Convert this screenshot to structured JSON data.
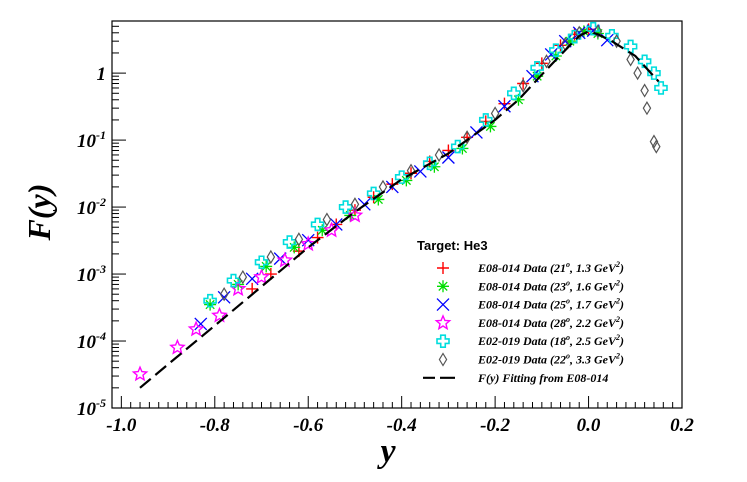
{
  "chart_data": {
    "type": "scatter",
    "title": "",
    "xlabel": "y",
    "ylabel": "F(y)",
    "xlim": [
      -1.02,
      0.2
    ],
    "ylim": [
      1e-05,
      6
    ],
    "yscale": "log",
    "grid": false,
    "x_tick_labels": [
      "-1.0",
      "-0.8",
      "-0.6",
      "-0.4",
      "-0.2",
      "0.0",
      "0.2"
    ],
    "x_tick_values": [
      -1.0,
      -0.8,
      -0.6,
      -0.4,
      -0.2,
      0.0,
      0.2
    ],
    "y_tick_labels": [
      {
        "base": "10",
        "exp": "-5",
        "value": 1e-05
      },
      {
        "base": "10",
        "exp": "-4",
        "value": 0.0001
      },
      {
        "base": "10",
        "exp": "-3",
        "value": 0.001
      },
      {
        "base": "10",
        "exp": "-2",
        "value": 0.01
      },
      {
        "base": "10",
        "exp": "-1",
        "value": 0.1
      },
      {
        "base": "1",
        "exp": "",
        "value": 1
      }
    ],
    "legend": {
      "title": "Target: He3",
      "placement": "bottom-right",
      "entries": [
        {
          "label": "E08-014 Data (21",
          "deg": "o",
          "mid": ", 1.3 GeV",
          "sup": "2",
          "end": ")",
          "marker": "plus",
          "color": "#ff0000"
        },
        {
          "label": "E08-014 Data (23",
          "deg": "o",
          "mid": ", 1.6 GeV",
          "sup": "2",
          "end": ")",
          "marker": "asterisk",
          "color": "#00dd00"
        },
        {
          "label": "E08-014 Data (25",
          "deg": "o",
          "mid": ", 1.7 GeV",
          "sup": "2",
          "end": ")",
          "marker": "cross",
          "color": "#0000ff"
        },
        {
          "label": "E08-014 Data (28",
          "deg": "o",
          "mid": ", 2.2 GeV",
          "sup": "2",
          "end": ")",
          "marker": "star",
          "color": "#ff00ff"
        },
        {
          "label": "E02-019 Data (18",
          "deg": "o",
          "mid": ", 2.5 GeV",
          "sup": "2",
          "end": ")",
          "marker": "openplus",
          "color": "#00dddd"
        },
        {
          "label": "E02-019 Data (22",
          "deg": "o",
          "mid": ", 3.3 GeV",
          "sup": "2",
          "end": ")",
          "marker": "diamond",
          "color": "#555555"
        },
        {
          "label": "F(y) Fitting from E08-014",
          "deg": "",
          "mid": "",
          "sup": "",
          "end": "",
          "marker": "dashline",
          "color": "#000000"
        }
      ]
    },
    "series": [
      {
        "name": "E08-014 Data (21°, 1.3 GeV²)",
        "marker": "plus",
        "color": "#ff0000",
        "x": [
          -0.72,
          -0.68,
          -0.62,
          -0.58,
          -0.54,
          -0.5,
          -0.46,
          -0.42,
          -0.38,
          -0.34,
          -0.3,
          -0.26,
          -0.22,
          -0.18,
          -0.14,
          -0.1,
          -0.06,
          -0.03,
          0.0
        ],
        "y": [
          0.0006,
          0.001,
          0.0022,
          0.0035,
          0.0055,
          0.009,
          0.014,
          0.022,
          0.032,
          0.048,
          0.07,
          0.11,
          0.19,
          0.35,
          0.7,
          1.4,
          2.6,
          3.8,
          4.5
        ]
      },
      {
        "name": "E08-014 Data (23°, 1.6 GeV²)",
        "marker": "asterisk",
        "color": "#00dd00",
        "x": [
          -0.81,
          -0.75,
          -0.69,
          -0.63,
          -0.57,
          -0.51,
          -0.45,
          -0.39,
          -0.33,
          -0.27,
          -0.21,
          -0.15,
          -0.11,
          -0.07,
          -0.04,
          -0.01,
          0.02
        ],
        "y": [
          0.00035,
          0.0007,
          0.0013,
          0.0025,
          0.0045,
          0.0075,
          0.013,
          0.025,
          0.04,
          0.075,
          0.16,
          0.4,
          0.9,
          1.8,
          3.0,
          4.2,
          3.9
        ]
      },
      {
        "name": "E08-014 Data (25°, 1.7 GeV²)",
        "marker": "cross",
        "color": "#0000ff",
        "x": [
          -0.83,
          -0.78,
          -0.72,
          -0.66,
          -0.6,
          -0.54,
          -0.48,
          -0.42,
          -0.36,
          -0.3,
          -0.24,
          -0.18,
          -0.12,
          -0.08,
          -0.05,
          -0.02,
          0.01,
          0.04
        ],
        "y": [
          0.00018,
          0.00045,
          0.00085,
          0.0017,
          0.0032,
          0.0055,
          0.011,
          0.02,
          0.034,
          0.055,
          0.13,
          0.32,
          0.9,
          1.9,
          3.0,
          4.0,
          4.3,
          3.1
        ]
      },
      {
        "name": "E08-014 Data (28°, 2.2 GeV²)",
        "marker": "star",
        "color": "#ff00ff",
        "x": [
          -0.96,
          -0.88,
          -0.84,
          -0.79,
          -0.75,
          -0.7,
          -0.65,
          -0.6,
          -0.55,
          -0.5
        ],
        "y": [
          3.2e-05,
          8e-05,
          0.00015,
          0.00024,
          0.0006,
          0.0009,
          0.0016,
          0.0028,
          0.0045,
          0.0075
        ]
      },
      {
        "name": "E02-019 Data (18°, 2.5 GeV²)",
        "marker": "openplus",
        "color": "#00dddd",
        "x": [
          -0.81,
          -0.76,
          -0.7,
          -0.64,
          -0.58,
          -0.52,
          -0.46,
          -0.4,
          -0.34,
          -0.28,
          -0.22,
          -0.16,
          -0.11,
          -0.07,
          -0.03,
          0.01,
          0.05,
          0.09,
          0.12,
          0.14,
          0.155
        ],
        "y": [
          0.0004,
          0.0008,
          0.0015,
          0.003,
          0.0055,
          0.01,
          0.016,
          0.028,
          0.045,
          0.08,
          0.2,
          0.5,
          1.2,
          2.2,
          3.5,
          4.6,
          3.6,
          2.5,
          1.5,
          1.0,
          0.6
        ]
      },
      {
        "name": "E02-019 Data (22°, 3.3 GeV²)",
        "marker": "diamond",
        "color": "#555555",
        "x": [
          -0.78,
          -0.74,
          -0.68,
          -0.62,
          -0.56,
          -0.5,
          -0.44,
          -0.38,
          -0.32,
          -0.26,
          -0.2,
          -0.14,
          -0.09,
          -0.05,
          -0.02,
          0.02,
          0.06,
          0.09,
          0.105,
          0.12,
          0.125,
          0.14,
          0.145
        ],
        "y": [
          0.0005,
          0.0009,
          0.0018,
          0.0033,
          0.0065,
          0.011,
          0.02,
          0.035,
          0.06,
          0.11,
          0.25,
          0.65,
          1.5,
          2.7,
          4.0,
          4.2,
          3.0,
          1.6,
          1.0,
          0.55,
          0.3,
          0.095,
          0.08
        ]
      },
      {
        "name": "F(y) Fitting from E08-014",
        "marker": "dashline",
        "color": "#000000",
        "x": [
          -0.96,
          -0.9,
          -0.8,
          -0.7,
          -0.6,
          -0.5,
          -0.4,
          -0.3,
          -0.2,
          -0.15,
          -0.1,
          -0.05,
          -0.02,
          0.0,
          0.02,
          0.05,
          0.1,
          0.15
        ],
        "y": [
          2e-05,
          4.5e-05,
          0.00017,
          0.00065,
          0.0025,
          0.0085,
          0.026,
          0.063,
          0.2,
          0.4,
          0.95,
          2.2,
          3.6,
          4.2,
          3.8,
          3.0,
          1.8,
          0.75
        ]
      }
    ]
  }
}
